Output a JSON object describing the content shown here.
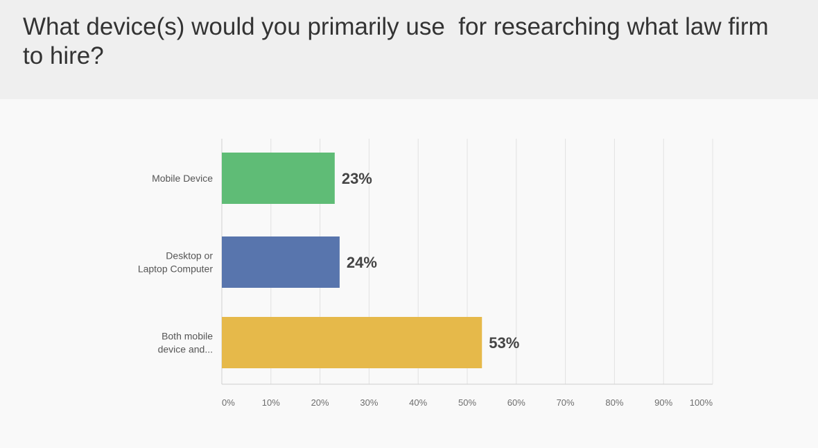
{
  "question": "What device(s) would you primarily use  for researching what law firm to hire?",
  "chart_data": {
    "type": "bar",
    "orientation": "horizontal",
    "title": "What device(s) would you primarily use  for researching what law firm to hire?",
    "categories": [
      [
        "Mobile Device"
      ],
      [
        "Desktop or",
        "Laptop Computer"
      ],
      [
        "Both mobile",
        "device and..."
      ]
    ],
    "values": [
      23,
      24,
      53
    ],
    "value_labels": [
      "23%",
      "24%",
      "53%"
    ],
    "colors": [
      "#5fbc76",
      "#5875ad",
      "#e6b94a"
    ],
    "xlim": [
      0,
      100
    ],
    "xticks": [
      0,
      10,
      20,
      30,
      40,
      50,
      60,
      70,
      80,
      90,
      100
    ],
    "xtick_labels": [
      "0%",
      "10%",
      "20%",
      "30%",
      "40%",
      "50%",
      "60%",
      "70%",
      "80%",
      "90%",
      "100%"
    ],
    "grid": true,
    "legend": "none"
  }
}
